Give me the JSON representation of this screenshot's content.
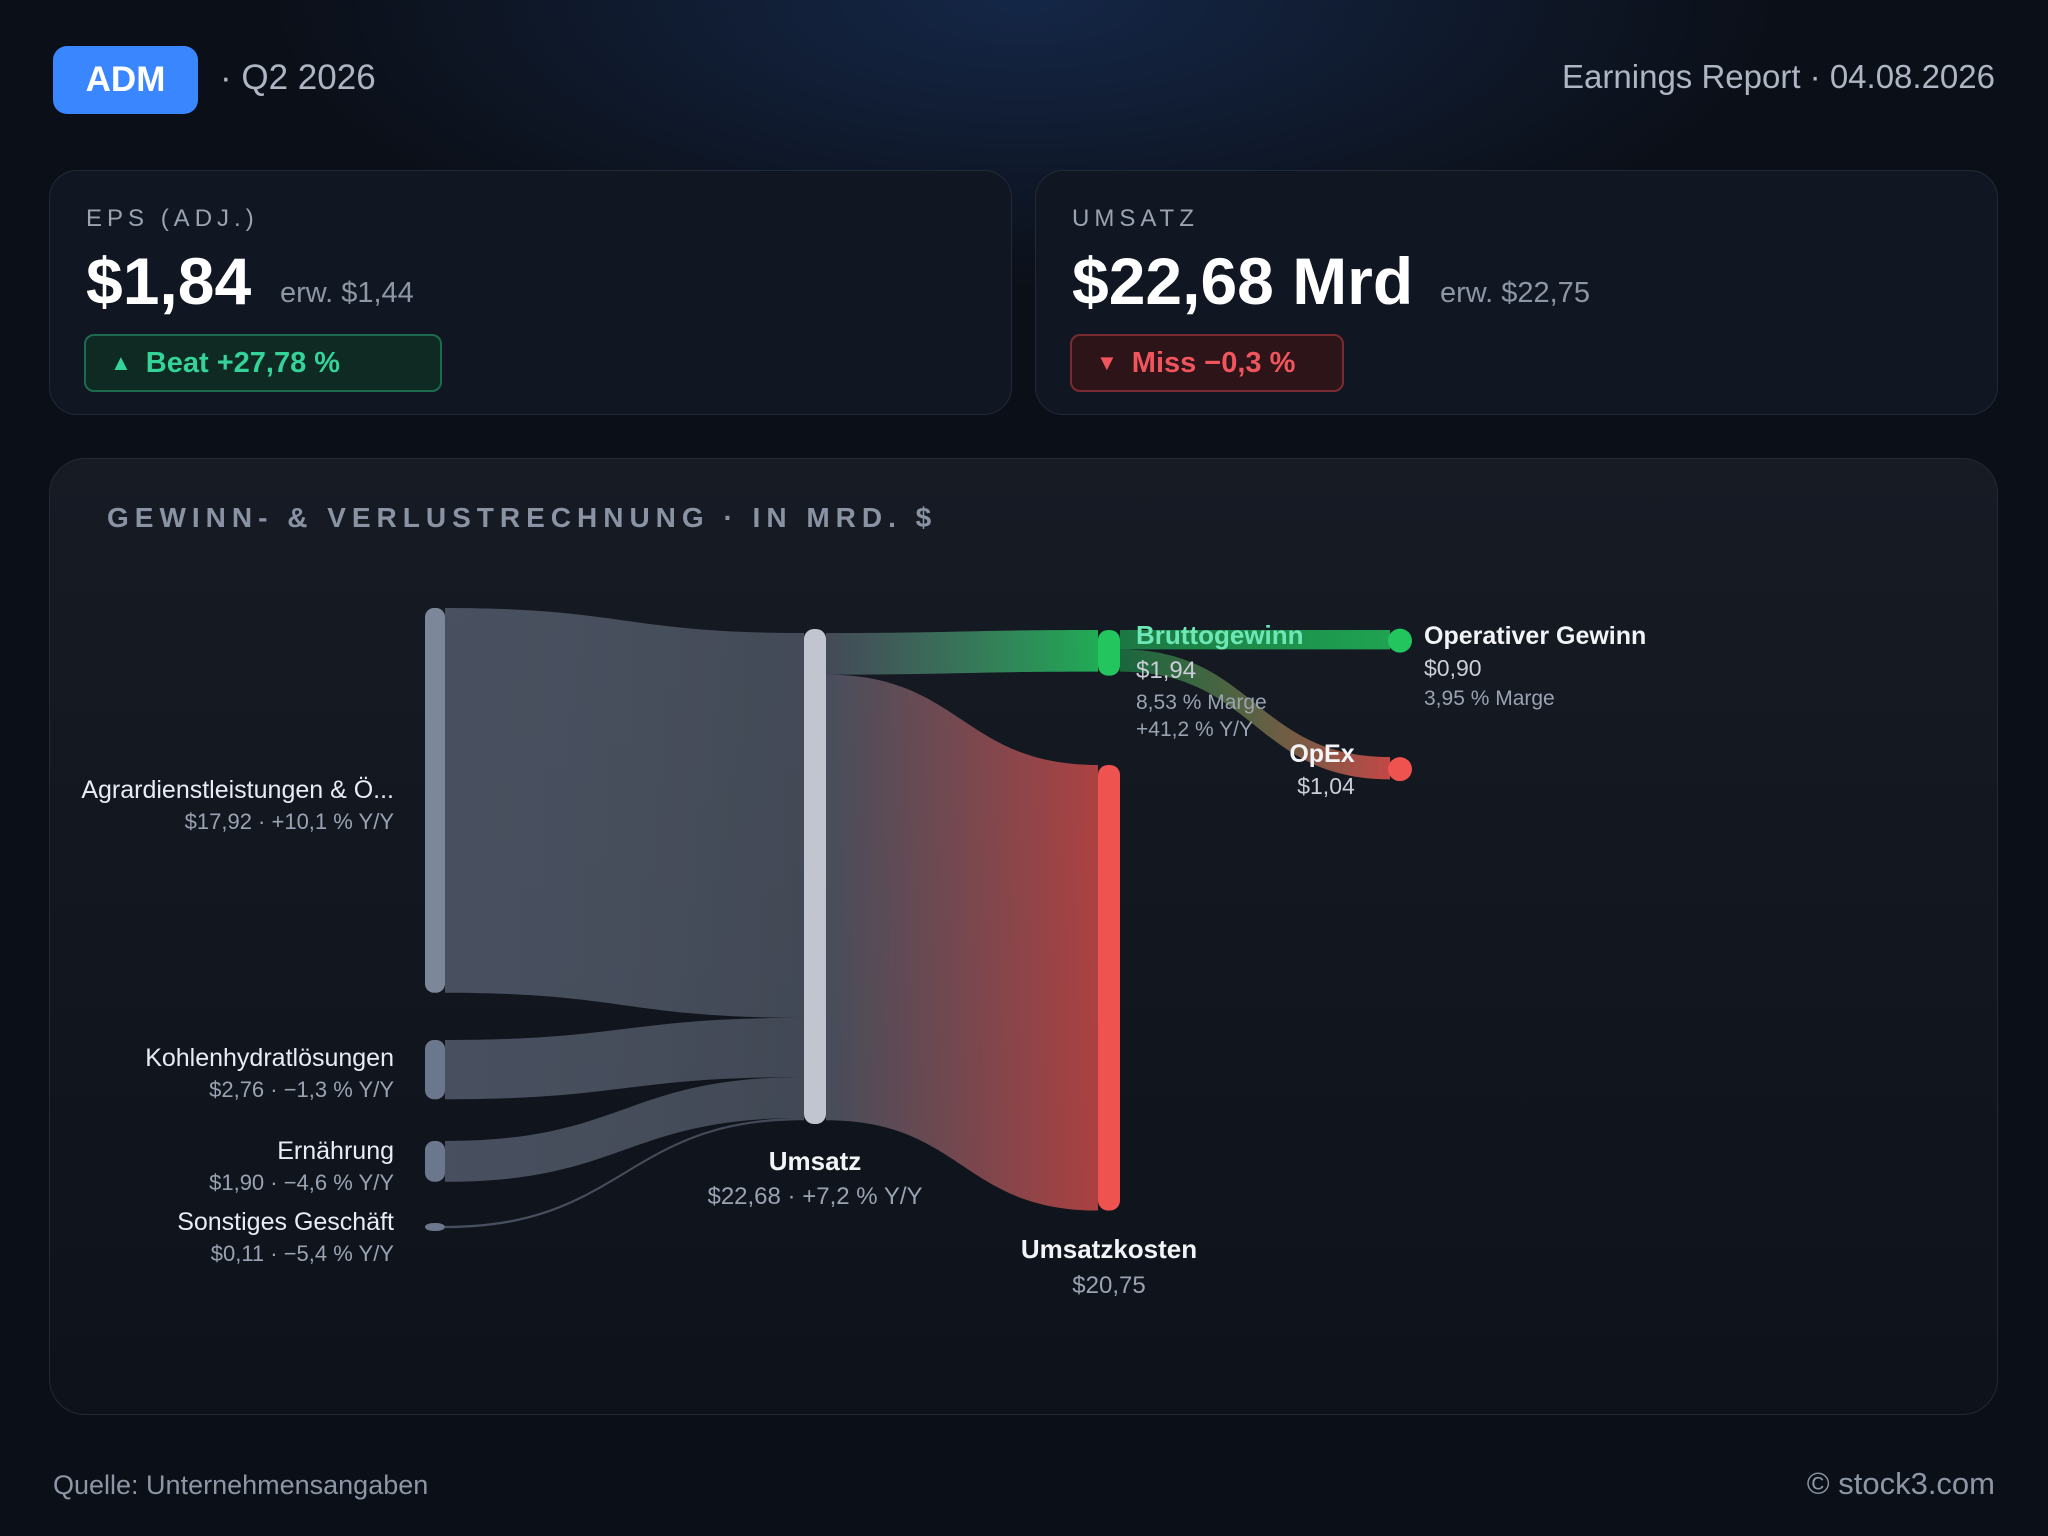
{
  "header": {
    "ticker": "ADM",
    "quarter": "· Q2 2026",
    "report": "Earnings Report · 04.08.2026"
  },
  "kpis": {
    "eps": {
      "label": "EPS (ADJ.)",
      "value": "$1,84",
      "expected": "erw. $1,44",
      "badge": "Beat +27,78 %",
      "status": "beat"
    },
    "revenue": {
      "label": "UMSATZ",
      "value": "$22,68 Mrd",
      "expected": "erw. $22,75",
      "badge": "Miss −0,3 %",
      "status": "miss"
    }
  },
  "colors": {
    "beat": "#34d399",
    "miss": "#f0555d",
    "revenue_node": "#c0c5d0",
    "segment_node": "#6b778c",
    "profit_node": "#22c55e",
    "cost_node": "#ef5350"
  },
  "chart_data": {
    "type": "sankey",
    "title": "GEWINN- & VERLUSTRECHNUNG · IN MRD. $",
    "nodes": [
      {
        "id": "agrar",
        "name": "Agrardienstleistungen & Ö...",
        "value": 17.92,
        "detail": "$17,92 · +10,1 % Y/Y"
      },
      {
        "id": "kohlen",
        "name": "Kohlenhydratlösungen",
        "value": 2.76,
        "detail": "$2,76 · −1,3 % Y/Y"
      },
      {
        "id": "ernaehrung",
        "name": "Ernährung",
        "value": 1.9,
        "detail": "$1,90 · −4,6 % Y/Y"
      },
      {
        "id": "sonstiges",
        "name": "Sonstiges Geschäft",
        "value": 0.11,
        "detail": "$0,11 · −5,4 % Y/Y"
      },
      {
        "id": "umsatz",
        "name": "Umsatz",
        "value": 22.68,
        "detail": "$22,68 · +7,2 % Y/Y"
      },
      {
        "id": "brutto",
        "name": "Bruttogewinn",
        "value": 1.94,
        "detail": "$1,94",
        "margin": "8,53 % Marge",
        "yoy": "+41,2 % Y/Y"
      },
      {
        "id": "kosten",
        "name": "Umsatzkosten",
        "value": 20.75,
        "detail": "$20,75"
      },
      {
        "id": "opgewinn",
        "name": "Operativer Gewinn",
        "value": 0.9,
        "detail": "$0,90",
        "margin": "3,95 % Marge"
      },
      {
        "id": "opex",
        "name": "OpEx",
        "value": 1.04,
        "detail": "$1,04"
      }
    ],
    "links": [
      {
        "source": "agrar",
        "target": "umsatz",
        "value": 17.92
      },
      {
        "source": "kohlen",
        "target": "umsatz",
        "value": 2.76
      },
      {
        "source": "ernaehrung",
        "target": "umsatz",
        "value": 1.9
      },
      {
        "source": "sonstiges",
        "target": "umsatz",
        "value": 0.11
      },
      {
        "source": "umsatz",
        "target": "brutto",
        "value": 1.94
      },
      {
        "source": "umsatz",
        "target": "kosten",
        "value": 20.75
      },
      {
        "source": "brutto",
        "target": "opgewinn",
        "value": 0.9
      },
      {
        "source": "brutto",
        "target": "opex",
        "value": 1.04
      }
    ]
  },
  "footer": {
    "source": "Quelle: Unternehmensangaben",
    "copyright": "© stock3.com"
  }
}
